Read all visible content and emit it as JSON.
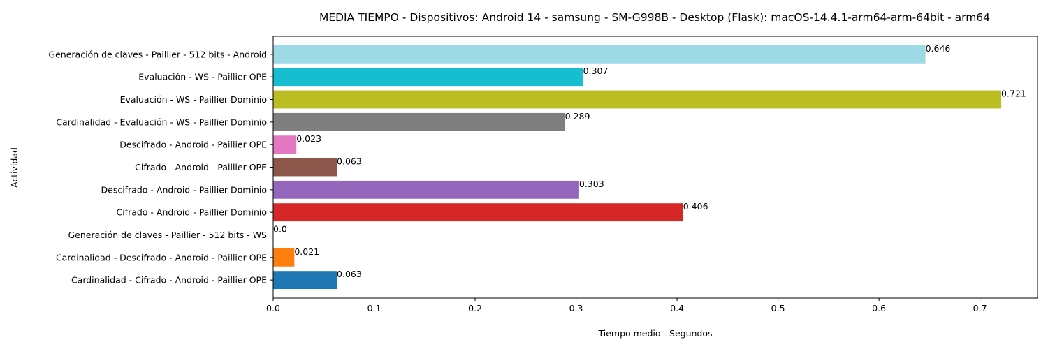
{
  "chart_data": {
    "type": "bar",
    "orientation": "horizontal",
    "title": "MEDIA TIEMPO - Dispositivos: Android 14 - samsung - SM-G998B - Desktop (Flask): macOS-14.4.1-arm64-arm-64bit - arm64",
    "xlabel": "Tiempo medio - Segundos",
    "ylabel": "Actividad",
    "xlim": [
      0,
      0.757
    ],
    "xticks": [
      "0.0",
      "0.1",
      "0.2",
      "0.3",
      "0.4",
      "0.5",
      "0.6",
      "0.7"
    ],
    "categories": [
      "Cardinalidad - Cifrado - Android - Paillier OPE",
      "Cardinalidad - Descifrado - Android - Paillier OPE",
      "Generación de claves - Paillier - 512 bits - WS",
      "Cifrado - Android - Paillier Dominio",
      "Descifrado - Android - Paillier Dominio",
      "Cifrado - Android - Paillier OPE",
      "Descifrado - Android - Paillier OPE",
      "Cardinalidad - Evaluación - WS - Paillier Dominio",
      "Evaluación - WS - Paillier Dominio",
      "Evaluación - WS - Paillier OPE",
      "Generación de claves - Paillier - 512 bits - Android"
    ],
    "values": [
      0.063,
      0.021,
      0.0,
      0.406,
      0.303,
      0.063,
      0.023,
      0.289,
      0.721,
      0.307,
      0.646
    ],
    "value_labels": [
      "0.063",
      "0.021",
      "0.0",
      "0.406",
      "0.303",
      "0.063",
      "0.023",
      "0.289",
      "0.721",
      "0.307",
      "0.646"
    ],
    "colors": [
      "#1f77b4",
      "#ff7f0e",
      "#2ca02c",
      "#d62728",
      "#9467bd",
      "#8c564b",
      "#e377c2",
      "#7f7f7f",
      "#bcbd22",
      "#17becf",
      "#9edae5"
    ],
    "grid": false,
    "legend": "none"
  }
}
